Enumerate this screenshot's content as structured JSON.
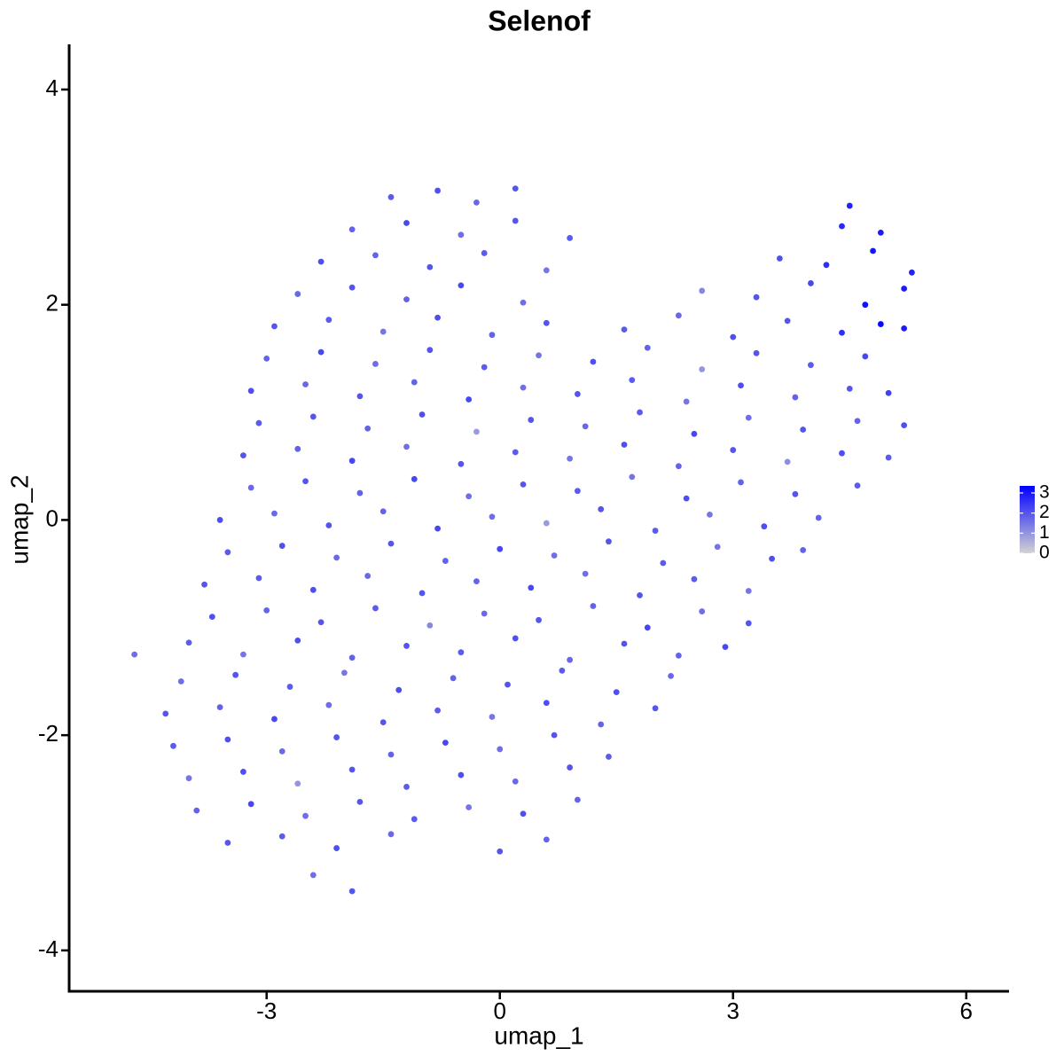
{
  "chart_data": {
    "type": "scatter",
    "title": "Selenof",
    "x_label": "umap_1",
    "y_label": "umap_2",
    "xlim": [
      -5.54,
      6.55
    ],
    "ylim": [
      -4.38,
      4.42
    ],
    "xticks": [
      -3,
      0,
      3,
      6
    ],
    "yticks": [
      -4,
      -2,
      0,
      2,
      4
    ],
    "grid": false,
    "colorbar": {
      "lim": [
        0,
        3.35
      ],
      "ticks": [
        0,
        1,
        2,
        3
      ],
      "low": "#d3d3d3",
      "high": "#0000ff"
    },
    "x": [
      -1.4,
      -0.8,
      -0.3,
      0.2,
      4.5,
      -1.9,
      -1.2,
      -0.5,
      0.2,
      0.9,
      4.4,
      4.9,
      -2.3,
      -1.6,
      -0.9,
      -0.2,
      0.6,
      3.6,
      4.2,
      4.8,
      5.3,
      -2.6,
      -1.9,
      -1.2,
      -0.5,
      0.3,
      2.6,
      3.3,
      4.0,
      4.7,
      5.2,
      -2.9,
      -2.2,
      -1.5,
      -0.8,
      -0.1,
      0.6,
      1.6,
      2.3,
      3.0,
      3.7,
      4.4,
      4.9,
      5.2,
      -3.0,
      -2.3,
      -1.6,
      -0.9,
      -0.2,
      0.5,
      1.2,
      1.9,
      2.6,
      3.3,
      4.0,
      4.7,
      -3.2,
      -2.5,
      -1.8,
      -1.1,
      -0.4,
      0.3,
      1.0,
      1.7,
      2.4,
      3.1,
      3.8,
      4.5,
      5.0,
      -3.1,
      -2.4,
      -1.7,
      -1.0,
      -0.3,
      0.4,
      1.1,
      1.8,
      2.5,
      3.2,
      3.9,
      4.6,
      5.2,
      -3.3,
      -2.6,
      -1.9,
      -1.2,
      -0.5,
      0.2,
      0.9,
      1.6,
      2.3,
      3.0,
      3.7,
      4.4,
      5.0,
      -3.2,
      -2.5,
      -1.8,
      -1.1,
      -0.4,
      0.3,
      1.0,
      1.7,
      2.4,
      3.1,
      3.8,
      4.6,
      -3.6,
      -2.9,
      -2.2,
      -1.5,
      -0.8,
      -0.1,
      0.6,
      1.3,
      2.0,
      2.7,
      3.4,
      4.1,
      -3.5,
      -2.8,
      -2.1,
      -1.4,
      -0.7,
      0.0,
      0.7,
      1.4,
      2.1,
      2.8,
      3.5,
      3.9,
      -3.8,
      -3.1,
      -2.4,
      -1.7,
      -1.0,
      -0.3,
      0.4,
      1.1,
      1.8,
      2.5,
      3.2,
      -3.7,
      -3.0,
      -2.3,
      -1.6,
      -0.9,
      -0.2,
      0.5,
      1.2,
      1.9,
      2.6,
      3.2,
      -4.7,
      -4.0,
      -3.3,
      -2.6,
      -1.9,
      -1.2,
      -0.5,
      0.2,
      0.9,
      1.6,
      2.3,
      2.9,
      -4.1,
      -3.4,
      -2.7,
      -2.0,
      -1.3,
      -0.6,
      0.1,
      0.8,
      1.5,
      2.2,
      -4.3,
      -3.6,
      -2.9,
      -2.2,
      -1.5,
      -0.8,
      -0.1,
      0.6,
      1.3,
      2.0,
      -4.2,
      -3.5,
      -2.8,
      -2.1,
      -1.4,
      -0.7,
      0.0,
      0.7,
      1.4,
      -4.0,
      -3.3,
      -2.6,
      -1.9,
      -1.2,
      -0.5,
      0.2,
      0.9,
      -3.9,
      -3.2,
      -2.5,
      -1.8,
      -1.1,
      -0.4,
      0.3,
      1.0,
      -3.5,
      -2.8,
      -2.1,
      -1.4,
      0.0,
      0.6,
      -2.4,
      -1.9
    ],
    "y": [
      3.0,
      3.06,
      2.95,
      3.08,
      2.92,
      2.7,
      2.76,
      2.65,
      2.78,
      2.62,
      2.73,
      2.67,
      2.4,
      2.46,
      2.35,
      2.48,
      2.32,
      2.43,
      2.37,
      2.5,
      2.3,
      2.1,
      2.16,
      2.05,
      2.18,
      2.02,
      2.13,
      2.07,
      2.2,
      2.0,
      2.15,
      1.8,
      1.86,
      1.75,
      1.88,
      1.72,
      1.83,
      1.77,
      1.9,
      1.7,
      1.85,
      1.74,
      1.82,
      1.78,
      1.5,
      1.56,
      1.45,
      1.58,
      1.42,
      1.53,
      1.47,
      1.6,
      1.4,
      1.55,
      1.44,
      1.52,
      1.2,
      1.26,
      1.15,
      1.28,
      1.12,
      1.23,
      1.17,
      1.3,
      1.1,
      1.25,
      1.14,
      1.22,
      1.18,
      0.9,
      0.96,
      0.85,
      0.98,
      0.82,
      0.93,
      0.87,
      1.0,
      0.8,
      0.95,
      0.84,
      0.92,
      0.88,
      0.6,
      0.66,
      0.55,
      0.68,
      0.52,
      0.63,
      0.57,
      0.7,
      0.5,
      0.65,
      0.54,
      0.62,
      0.58,
      0.3,
      0.36,
      0.25,
      0.38,
      0.22,
      0.33,
      0.27,
      0.4,
      0.2,
      0.35,
      0.24,
      0.32,
      0.0,
      0.06,
      -0.05,
      0.08,
      -0.08,
      0.03,
      -0.03,
      0.1,
      -0.1,
      0.05,
      -0.06,
      0.02,
      -0.3,
      -0.24,
      -0.35,
      -0.22,
      -0.38,
      -0.27,
      -0.33,
      -0.2,
      -0.4,
      -0.25,
      -0.36,
      -0.28,
      -0.6,
      -0.54,
      -0.65,
      -0.52,
      -0.68,
      -0.57,
      -0.63,
      -0.5,
      -0.7,
      -0.55,
      -0.66,
      -0.9,
      -0.84,
      -0.95,
      -0.82,
      -0.98,
      -0.87,
      -0.93,
      -0.8,
      -1.0,
      -0.85,
      -0.96,
      -1.25,
      -1.14,
      -1.25,
      -1.12,
      -1.28,
      -1.17,
      -1.23,
      -1.1,
      -1.3,
      -1.15,
      -1.26,
      -1.18,
      -1.5,
      -1.44,
      -1.55,
      -1.42,
      -1.58,
      -1.47,
      -1.53,
      -1.4,
      -1.6,
      -1.45,
      -1.8,
      -1.74,
      -1.85,
      -1.72,
      -1.88,
      -1.77,
      -1.83,
      -1.7,
      -1.9,
      -1.75,
      -2.1,
      -2.04,
      -2.15,
      -2.02,
      -2.18,
      -2.07,
      -2.13,
      -2.0,
      -2.2,
      -2.4,
      -2.34,
      -2.45,
      -2.32,
      -2.48,
      -2.37,
      -2.43,
      -2.3,
      -2.7,
      -2.64,
      -2.75,
      -2.62,
      -2.78,
      -2.67,
      -2.73,
      -2.6,
      -3.0,
      -2.94,
      -3.05,
      -2.92,
      -3.08,
      -2.97,
      -3.3,
      -3.45
    ],
    "values": [
      1.9,
      2.1,
      1.7,
      2.0,
      2.8,
      1.8,
      2.2,
      1.6,
      2.0,
      1.9,
      2.7,
      2.9,
      2.1,
      1.8,
      2.0,
      1.9,
      1.5,
      2.1,
      2.6,
      3.0,
      2.8,
      1.7,
      2.0,
      1.8,
      2.2,
      1.6,
      1.2,
      2.0,
      2.2,
      3.1,
      2.9,
      2.0,
      1.9,
      1.5,
      2.1,
      1.8,
      2.0,
      1.9,
      1.7,
      2.1,
      2.0,
      2.6,
      3.2,
      2.9,
      1.8,
      2.2,
      1.6,
      2.0,
      1.9,
      1.5,
      2.1,
      1.8,
      1.0,
      2.0,
      1.9,
      2.2,
      2.1,
      1.7,
      2.0,
      1.8,
      2.2,
      1.6,
      2.0,
      1.9,
      1.5,
      2.1,
      1.8,
      2.0,
      2.3,
      1.9,
      2.0,
      1.8,
      2.1,
      0.9,
      2.0,
      1.7,
      1.9,
      2.2,
      1.6,
      2.0,
      1.8,
      2.1,
      2.0,
      1.8,
      2.2,
      1.6,
      2.0,
      1.9,
      1.5,
      2.1,
      1.8,
      2.0,
      1.1,
      2.1,
      1.9,
      1.7,
      2.0,
      1.8,
      2.2,
      1.6,
      2.0,
      1.9,
      1.5,
      2.1,
      1.8,
      2.0,
      1.9,
      2.1,
      1.7,
      2.0,
      1.8,
      2.2,
      1.6,
      0.9,
      2.0,
      1.9,
      1.5,
      2.1,
      1.8,
      1.9,
      2.1,
      1.7,
      2.0,
      1.8,
      2.2,
      1.6,
      2.0,
      1.9,
      1.5,
      2.1,
      1.8,
      2.0,
      1.9,
      2.1,
      1.7,
      2.0,
      1.8,
      2.2,
      1.6,
      2.0,
      1.9,
      1.5,
      2.1,
      1.8,
      2.0,
      1.9,
      1.2,
      1.7,
      2.0,
      1.8,
      2.2,
      1.6,
      2.0,
      1.6,
      1.9,
      1.5,
      2.1,
      1.8,
      2.0,
      1.9,
      2.1,
      1.7,
      2.0,
      1.8,
      2.2,
      1.6,
      2.0,
      1.9,
      1.5,
      2.1,
      1.8,
      2.0,
      1.9,
      2.1,
      1.7,
      2.0,
      1.8,
      2.2,
      1.6,
      2.0,
      1.9,
      1.5,
      2.1,
      1.8,
      2.0,
      1.9,
      2.1,
      1.7,
      2.0,
      1.8,
      2.2,
      1.6,
      2.0,
      1.9,
      1.5,
      2.1,
      1.0,
      2.0,
      1.9,
      2.1,
      1.7,
      2.0,
      1.8,
      2.2,
      1.6,
      2.0,
      1.9,
      1.5,
      2.1,
      1.8,
      2.0,
      1.9,
      2.1,
      1.7,
      2.0,
      1.8,
      1.6,
      2.0
    ]
  }
}
